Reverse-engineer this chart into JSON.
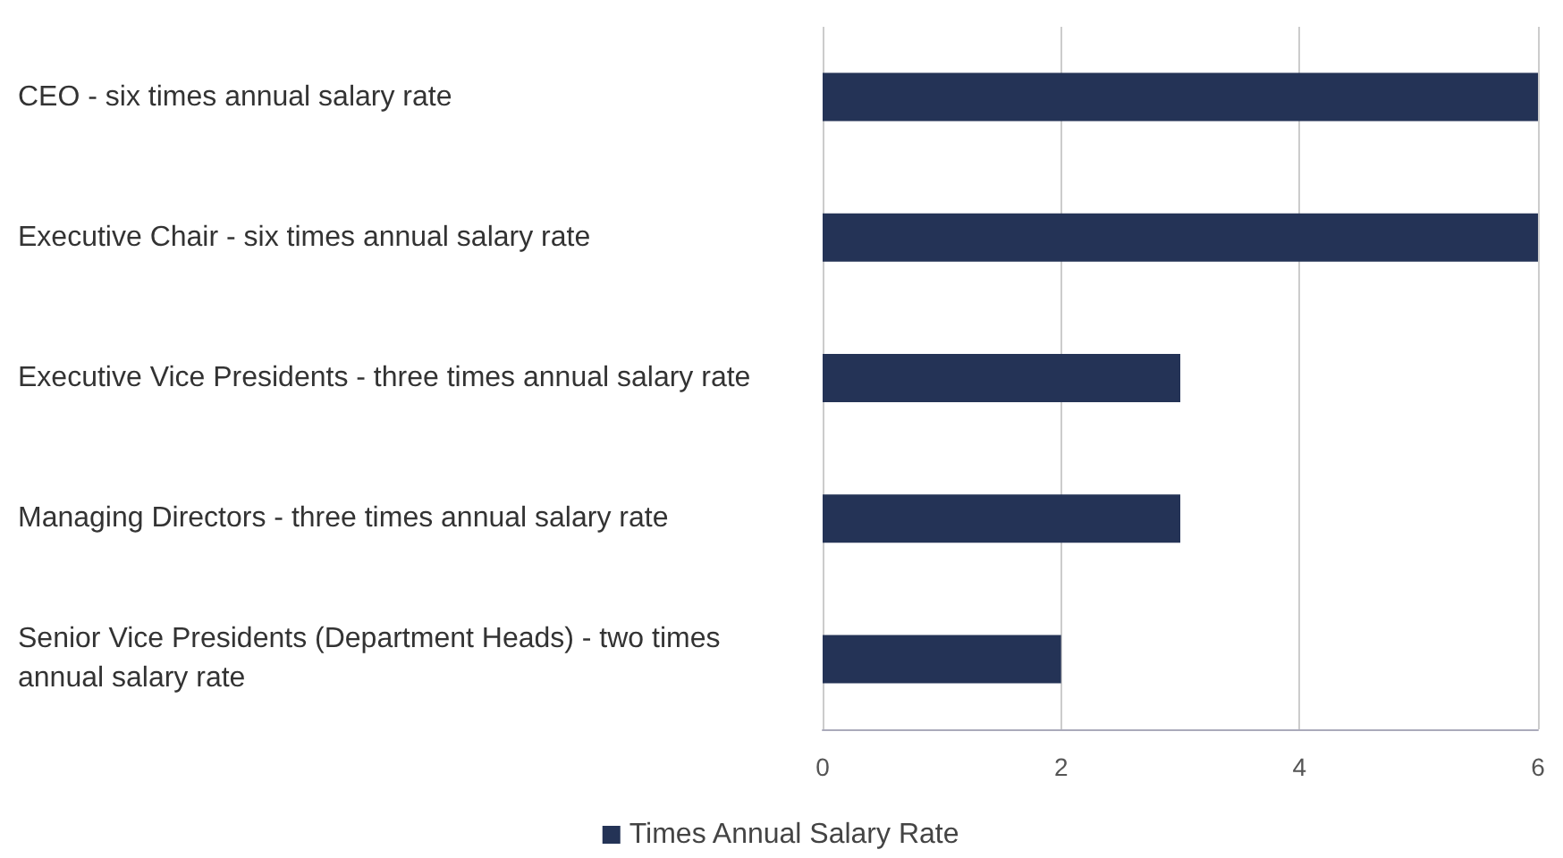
{
  "chart_data": {
    "type": "bar",
    "orientation": "horizontal",
    "categories": [
      "CEO - six times annual salary rate",
      "Executive Chair - six times annual salary rate",
      "Executive Vice Presidents - three times annual salary rate",
      "Managing Directors - three times annual salary rate",
      "Senior Vice Presidents (Department Heads) - two times annual salary rate"
    ],
    "series": [
      {
        "name": "Times Annual Salary Rate",
        "color": "#243356",
        "values": [
          6,
          6,
          3,
          3,
          2
        ]
      }
    ],
    "xlim": [
      0,
      6
    ],
    "xticks": [
      0,
      2,
      4,
      6
    ],
    "grid": "x",
    "legend": "bottom"
  }
}
